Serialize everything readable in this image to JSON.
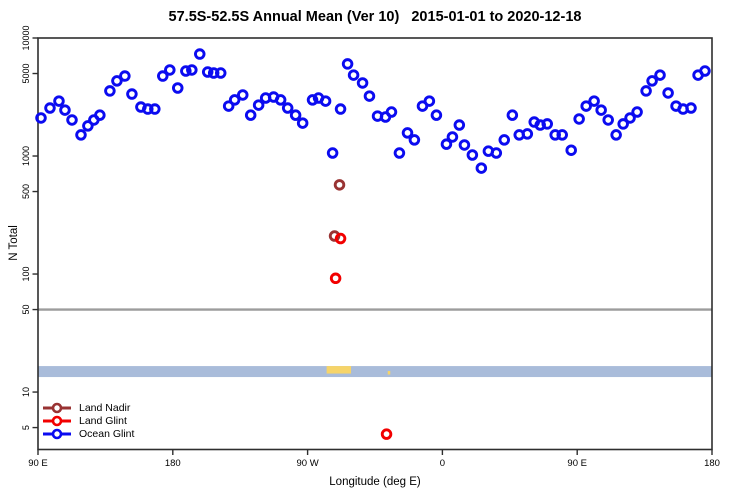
{
  "chart_data": {
    "type": "scatter",
    "title": "57.5S-52.5S Annual Mean (Ver 10)   2015-01-01 to 2020-12-18",
    "xlabel": "Longitude (deg E)",
    "ylabel": "N Total",
    "x_axis": {
      "note": "longitude axis runs eastward from 90E wrapping through the dateline: 90E,180,90W,0,90E,180 (stored as unwrapped degrees 90-540)",
      "range_deg": [
        90,
        540
      ],
      "ticks": [
        {
          "deg": 90,
          "label": "90 E"
        },
        {
          "deg": 180,
          "label": "180"
        },
        {
          "deg": 270,
          "label": "90 W"
        },
        {
          "deg": 360,
          "label": "0"
        },
        {
          "deg": 450,
          "label": "90 E"
        },
        {
          "deg": 540,
          "label": "180"
        }
      ]
    },
    "y_axis": {
      "scale": "log",
      "range": [
        3.26,
        10000
      ],
      "ticks": [
        {
          "value": 10000,
          "label": "10000"
        },
        {
          "value": 5000,
          "label": "5000"
        },
        {
          "value": 1000,
          "label": "1000"
        },
        {
          "value": 500,
          "label": "500"
        },
        {
          "value": 100,
          "label": "100"
        },
        {
          "value": 50,
          "label": "50"
        },
        {
          "value": 10,
          "label": "10"
        },
        {
          "value": 5,
          "label": "5"
        }
      ]
    },
    "reference_line": {
      "value": 50,
      "color": "#9c9c9c"
    },
    "map_band": {
      "description": "land/ocean strip of the 57.5S-52.5S latitude band",
      "value_top": 16.6,
      "value_bottom": 13.4,
      "ocean_color": "#a9bcda",
      "land_color": "#f6d469",
      "land_segments": [
        {
          "lon0": 282.7,
          "lon1": 299.0,
          "top": 0.0,
          "bottom": 0.68
        },
        {
          "lon0": 323.5,
          "lon1": 325.2,
          "top": 0.45,
          "bottom": 0.77
        }
      ]
    },
    "legend": [
      {
        "label": "Land Nadir",
        "color": "#993333"
      },
      {
        "label": "Land Glint",
        "color": "#f20000"
      },
      {
        "label": "Ocean Glint",
        "color": "#0b0bf0"
      }
    ],
    "series": [
      {
        "name": "Ocean Glint",
        "color": "#0b0bf0",
        "points": [
          [
            92,
            2100
          ],
          [
            98,
            2550
          ],
          [
            104,
            2920
          ],
          [
            108,
            2450
          ],
          [
            112.7,
            2020
          ],
          [
            118.7,
            1510
          ],
          [
            123.3,
            1800
          ],
          [
            127.3,
            2020
          ],
          [
            131.3,
            2220
          ],
          [
            138,
            3560
          ],
          [
            142.7,
            4330
          ],
          [
            148,
            4760
          ],
          [
            152.7,
            3350
          ],
          [
            158.7,
            2600
          ],
          [
            163.3,
            2500
          ],
          [
            168,
            2500
          ],
          [
            173.3,
            4760
          ],
          [
            178,
            5360
          ],
          [
            183.3,
            3770
          ],
          [
            188.7,
            5250
          ],
          [
            192.7,
            5360
          ],
          [
            198,
            7310
          ],
          [
            203.3,
            5150
          ],
          [
            207.3,
            5050
          ],
          [
            212,
            5050
          ],
          [
            217.3,
            2650
          ],
          [
            221.3,
            2990
          ],
          [
            226.7,
            3290
          ],
          [
            232,
            2220
          ],
          [
            237.3,
            2700
          ],
          [
            242,
            3100
          ],
          [
            247.3,
            3160
          ],
          [
            252,
            2990
          ],
          [
            256.7,
            2550
          ],
          [
            262,
            2220
          ],
          [
            266.7,
            1900
          ],
          [
            273.3,
            2990
          ],
          [
            277.3,
            3100
          ],
          [
            282,
            2920
          ],
          [
            286.7,
            1060
          ],
          [
            292,
            2500
          ],
          [
            296.7,
            6030
          ],
          [
            300.7,
            4850
          ],
          [
            306.7,
            4160
          ],
          [
            311.3,
            3220
          ],
          [
            316.7,
            2180
          ],
          [
            322,
            2140
          ],
          [
            326,
            2360
          ],
          [
            331.3,
            1060
          ],
          [
            336.7,
            1570
          ],
          [
            341.3,
            1370
          ],
          [
            346.7,
            2650
          ],
          [
            351.3,
            2920
          ],
          [
            356,
            2220
          ],
          [
            362.7,
            1260
          ],
          [
            366.7,
            1450
          ],
          [
            371.3,
            1830
          ],
          [
            374.7,
            1240
          ],
          [
            380,
            1020
          ],
          [
            386,
            790
          ],
          [
            390.7,
            1100
          ],
          [
            396,
            1060
          ],
          [
            401.3,
            1370
          ],
          [
            406.7,
            2220
          ],
          [
            411.3,
            1510
          ],
          [
            416.7,
            1540
          ],
          [
            421.3,
            1940
          ],
          [
            425.3,
            1830
          ],
          [
            430,
            1870
          ],
          [
            435.3,
            1510
          ],
          [
            440,
            1510
          ],
          [
            446,
            1120
          ],
          [
            451.3,
            2060
          ],
          [
            456,
            2650
          ],
          [
            461.3,
            2920
          ],
          [
            466,
            2450
          ],
          [
            470.7,
            2020
          ],
          [
            476,
            1510
          ],
          [
            480.7,
            1870
          ],
          [
            485.3,
            2100
          ],
          [
            490,
            2360
          ],
          [
            496,
            3560
          ],
          [
            500,
            4330
          ],
          [
            505.3,
            4850
          ],
          [
            510.7,
            3420
          ],
          [
            516,
            2650
          ],
          [
            520.7,
            2500
          ],
          [
            526,
            2550
          ],
          [
            530.7,
            4850
          ],
          [
            535.3,
            5250
          ]
        ]
      },
      {
        "name": "Land Nadir",
        "color": "#993333",
        "points": [
          [
            291.3,
            570
          ],
          [
            288,
            210
          ]
        ]
      },
      {
        "name": "Land Glint",
        "color": "#f20000",
        "points": [
          [
            292,
            200
          ],
          [
            288.7,
            92
          ],
          [
            322.7,
            4.4
          ]
        ]
      }
    ]
  }
}
